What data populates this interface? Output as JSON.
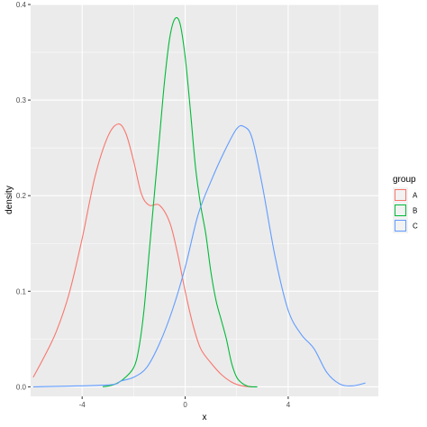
{
  "chart_data": {
    "type": "line",
    "subtype": "density",
    "xlabel": "x",
    "ylabel": "density",
    "xlim": [
      -6.0,
      7.5
    ],
    "ylim": [
      -0.01,
      0.4
    ],
    "x_ticks": [
      -4,
      0,
      4
    ],
    "x_tick_labels": [
      "-4",
      "0",
      "4"
    ],
    "y_ticks": [
      0.0,
      0.1,
      0.2,
      0.3,
      0.4
    ],
    "y_tick_labels": [
      "0.0",
      "0.1",
      "0.2",
      "0.3",
      "0.4"
    ],
    "grid": true,
    "legend": {
      "title": "group",
      "position": "right"
    },
    "series": [
      {
        "name": "A",
        "color": "#F8766D",
        "x": [
          -5.9,
          -5.5,
          -5.0,
          -4.5,
          -4.0,
          -3.5,
          -3.0,
          -2.6,
          -2.3,
          -2.0,
          -1.7,
          -1.4,
          -1.0,
          -0.6,
          -0.3,
          0.0,
          0.3,
          0.6,
          1.0,
          1.4,
          1.8,
          2.2,
          2.6
        ],
        "values": [
          0.01,
          0.03,
          0.058,
          0.098,
          0.155,
          0.22,
          0.262,
          0.275,
          0.265,
          0.236,
          0.202,
          0.19,
          0.19,
          0.172,
          0.14,
          0.1,
          0.065,
          0.04,
          0.025,
          0.013,
          0.005,
          0.001,
          0.0
        ]
      },
      {
        "name": "B",
        "color": "#00BA38",
        "x": [
          -3.2,
          -2.8,
          -2.4,
          -2.0,
          -1.8,
          -1.6,
          -1.4,
          -1.2,
          -1.0,
          -0.8,
          -0.6,
          -0.4,
          -0.2,
          0.0,
          0.2,
          0.4,
          0.6,
          0.8,
          1.0,
          1.2,
          1.4,
          1.6,
          1.8,
          2.0,
          2.2,
          2.4,
          2.6,
          2.8
        ],
        "values": [
          0.0,
          0.002,
          0.008,
          0.02,
          0.04,
          0.08,
          0.14,
          0.2,
          0.26,
          0.32,
          0.365,
          0.385,
          0.38,
          0.345,
          0.29,
          0.23,
          0.19,
          0.16,
          0.12,
          0.09,
          0.07,
          0.05,
          0.025,
          0.01,
          0.004,
          0.001,
          0.0,
          0.0
        ]
      },
      {
        "name": "C",
        "color": "#619CFF",
        "x": [
          -5.9,
          -3.0,
          -2.5,
          -2.0,
          -1.5,
          -1.0,
          -0.5,
          0.0,
          0.5,
          1.0,
          1.5,
          2.0,
          2.3,
          2.6,
          3.0,
          3.5,
          4.0,
          4.5,
          5.0,
          5.5,
          6.0,
          6.5,
          7.0
        ],
        "values": [
          0.0,
          0.002,
          0.006,
          0.01,
          0.02,
          0.045,
          0.08,
          0.125,
          0.18,
          0.215,
          0.245,
          0.27,
          0.272,
          0.26,
          0.21,
          0.135,
          0.08,
          0.055,
          0.04,
          0.015,
          0.003,
          0.001,
          0.004
        ]
      }
    ]
  }
}
